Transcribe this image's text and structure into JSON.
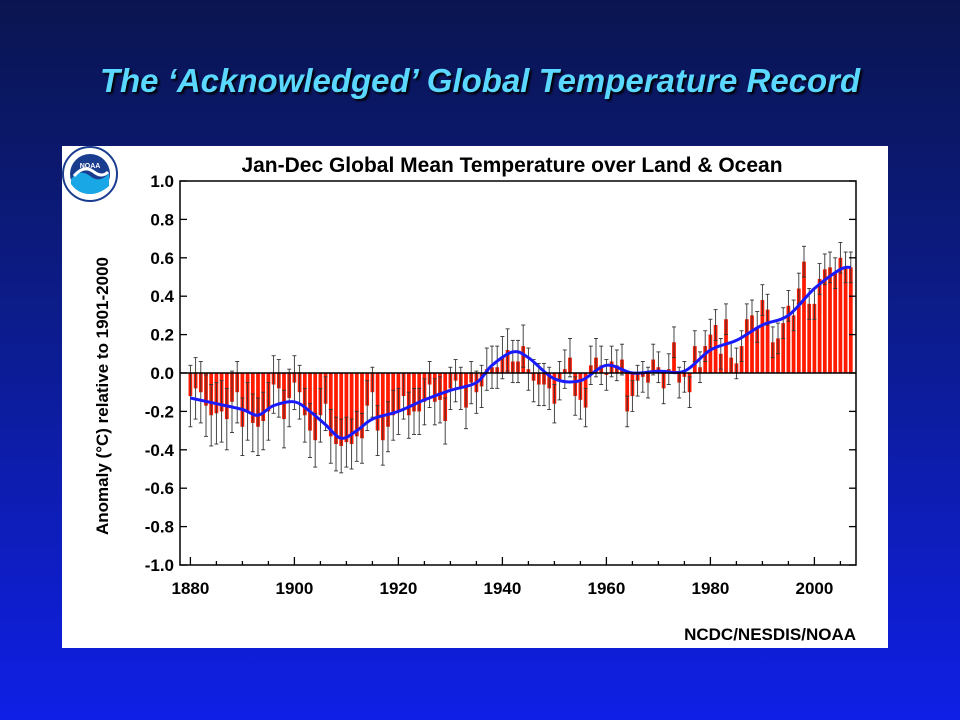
{
  "slide": {
    "title": "The ‘Acknowledged’ Global Temperature Record"
  },
  "colors": {
    "bar": "#ff1a00",
    "trend": "#1a1aff",
    "error_bar": "#333333",
    "background_top": "#0a1550",
    "background_bottom": "#0f1fe6",
    "title": "#5ad8ff"
  },
  "credit": "NCDC/NESDIS/NOAA",
  "logo": {
    "text": "NOAA",
    "icon": "noaa-logo-icon"
  },
  "chart_data": {
    "type": "bar",
    "title": "Jan-Dec Global Mean Temperature over Land & Ocean",
    "xlabel": "",
    "ylabel": "Anomaly (°C) relative to 1901-2000",
    "xlim": [
      1878,
      2008
    ],
    "ylim": [
      -1.0,
      1.0
    ],
    "x_ticks": [
      1880,
      1900,
      1920,
      1940,
      1960,
      1980,
      2000
    ],
    "y_ticks": [
      -1.0,
      -0.8,
      -0.6,
      -0.4,
      -0.2,
      0.0,
      0.2,
      0.4,
      0.6,
      0.8,
      1.0
    ],
    "y_tick_labels": [
      "-1.0",
      "-0.8",
      "-0.6",
      "-0.4",
      "-0.2",
      "0.0",
      "0.2",
      "0.4",
      "0.6",
      "0.8",
      "1.0"
    ],
    "grid": false,
    "legend": "none",
    "years": [
      1880,
      1881,
      1882,
      1883,
      1884,
      1885,
      1886,
      1887,
      1888,
      1889,
      1890,
      1891,
      1892,
      1893,
      1894,
      1895,
      1896,
      1897,
      1898,
      1899,
      1900,
      1901,
      1902,
      1903,
      1904,
      1905,
      1906,
      1907,
      1908,
      1909,
      1910,
      1911,
      1912,
      1913,
      1914,
      1915,
      1916,
      1917,
      1918,
      1919,
      1920,
      1921,
      1922,
      1923,
      1924,
      1925,
      1926,
      1927,
      1928,
      1929,
      1930,
      1931,
      1932,
      1933,
      1934,
      1935,
      1936,
      1937,
      1938,
      1939,
      1940,
      1941,
      1942,
      1943,
      1944,
      1945,
      1946,
      1947,
      1948,
      1949,
      1950,
      1951,
      1952,
      1953,
      1954,
      1955,
      1956,
      1957,
      1958,
      1959,
      1960,
      1961,
      1962,
      1963,
      1964,
      1965,
      1966,
      1967,
      1968,
      1969,
      1970,
      1971,
      1972,
      1973,
      1974,
      1975,
      1976,
      1977,
      1978,
      1979,
      1980,
      1981,
      1982,
      1983,
      1984,
      1985,
      1986,
      1987,
      1988,
      1989,
      1990,
      1991,
      1992,
      1993,
      1994,
      1995,
      1996,
      1997,
      1998,
      1999,
      2000,
      2001,
      2002,
      2003,
      2004,
      2005,
      2006,
      2007
    ],
    "anomaly": [
      -0.12,
      -0.08,
      -0.1,
      -0.17,
      -0.22,
      -0.21,
      -0.2,
      -0.24,
      -0.15,
      -0.1,
      -0.28,
      -0.2,
      -0.26,
      -0.28,
      -0.25,
      -0.2,
      -0.06,
      -0.08,
      -0.24,
      -0.13,
      -0.05,
      -0.1,
      -0.22,
      -0.3,
      -0.35,
      -0.22,
      -0.16,
      -0.33,
      -0.37,
      -0.38,
      -0.36,
      -0.37,
      -0.33,
      -0.34,
      -0.17,
      -0.1,
      -0.3,
      -0.35,
      -0.28,
      -0.22,
      -0.2,
      -0.12,
      -0.22,
      -0.2,
      -0.2,
      -0.15,
      -0.06,
      -0.15,
      -0.14,
      -0.25,
      -0.08,
      -0.04,
      -0.08,
      -0.18,
      -0.05,
      -0.1,
      -0.07,
      0.02,
      0.03,
      0.03,
      0.08,
      0.12,
      0.06,
      0.06,
      0.14,
      0.02,
      -0.04,
      -0.06,
      -0.06,
      -0.08,
      -0.16,
      -0.04,
      0.02,
      0.08,
      -0.12,
      -0.14,
      -0.18,
      0.04,
      0.08,
      0.04,
      -0.01,
      0.06,
      0.04,
      0.07,
      -0.2,
      -0.12,
      -0.04,
      -0.02,
      -0.05,
      0.07,
      0.03,
      -0.08,
      0.02,
      0.16,
      -0.05,
      -0.02,
      -0.1,
      0.14,
      0.03,
      0.14,
      0.2,
      0.25,
      0.1,
      0.28,
      0.08,
      0.05,
      0.14,
      0.28,
      0.3,
      0.24,
      0.38,
      0.33,
      0.16,
      0.18,
      0.26,
      0.35,
      0.3,
      0.44,
      0.58,
      0.36,
      0.36,
      0.49,
      0.54,
      0.55,
      0.52,
      0.6,
      0.55,
      0.55
    ],
    "error": [
      0.16,
      0.16,
      0.16,
      0.16,
      0.16,
      0.16,
      0.16,
      0.16,
      0.16,
      0.16,
      0.15,
      0.15,
      0.15,
      0.15,
      0.15,
      0.15,
      0.15,
      0.15,
      0.15,
      0.15,
      0.14,
      0.14,
      0.14,
      0.14,
      0.14,
      0.14,
      0.14,
      0.14,
      0.14,
      0.14,
      0.13,
      0.13,
      0.13,
      0.13,
      0.13,
      0.13,
      0.13,
      0.13,
      0.13,
      0.13,
      0.12,
      0.12,
      0.12,
      0.12,
      0.12,
      0.12,
      0.12,
      0.12,
      0.12,
      0.12,
      0.11,
      0.11,
      0.11,
      0.11,
      0.11,
      0.11,
      0.11,
      0.11,
      0.11,
      0.11,
      0.11,
      0.11,
      0.11,
      0.11,
      0.11,
      0.11,
      0.11,
      0.11,
      0.11,
      0.11,
      0.1,
      0.1,
      0.1,
      0.1,
      0.1,
      0.1,
      0.1,
      0.1,
      0.1,
      0.1,
      0.08,
      0.08,
      0.08,
      0.08,
      0.08,
      0.08,
      0.08,
      0.08,
      0.08,
      0.08,
      0.08,
      0.08,
      0.08,
      0.08,
      0.08,
      0.08,
      0.08,
      0.08,
      0.08,
      0.08,
      0.08,
      0.08,
      0.08,
      0.08,
      0.08,
      0.08,
      0.08,
      0.08,
      0.08,
      0.08,
      0.08,
      0.08,
      0.08,
      0.08,
      0.08,
      0.08,
      0.08,
      0.08,
      0.08,
      0.08,
      0.08,
      0.08,
      0.08,
      0.08,
      0.08,
      0.08,
      0.08,
      0.08
    ],
    "trend": {
      "x": [
        1880,
        1885,
        1890,
        1893,
        1896,
        1900,
        1903,
        1906,
        1909,
        1912,
        1915,
        1920,
        1925,
        1930,
        1935,
        1938,
        1942,
        1945,
        1950,
        1955,
        1960,
        1965,
        1970,
        1975,
        1980,
        1985,
        1990,
        1995,
        2000,
        2005,
        2007
      ],
      "y": [
        -0.13,
        -0.16,
        -0.19,
        -0.22,
        -0.17,
        -0.15,
        -0.2,
        -0.27,
        -0.34,
        -0.3,
        -0.24,
        -0.2,
        -0.14,
        -0.09,
        -0.05,
        0.04,
        0.11,
        0.08,
        -0.03,
        -0.04,
        0.04,
        0.0,
        0.01,
        0.01,
        0.12,
        0.17,
        0.25,
        0.3,
        0.44,
        0.54,
        0.55
      ]
    }
  }
}
